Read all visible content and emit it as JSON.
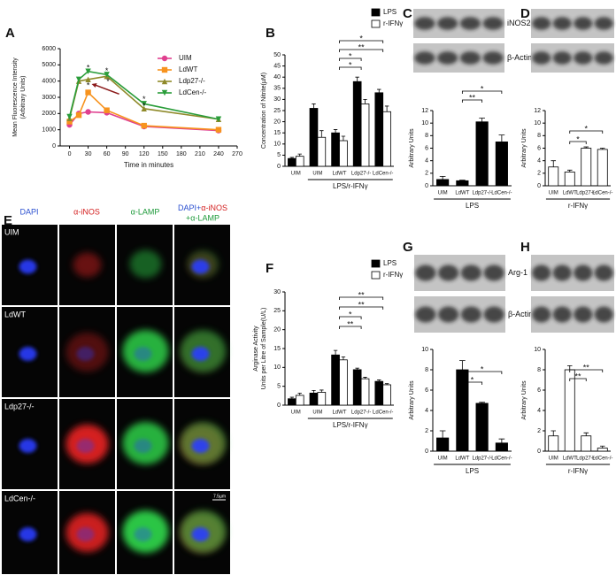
{
  "chart_data": [
    {
      "panel": "A",
      "type": "line",
      "x": [
        0,
        15,
        30,
        60,
        120,
        240
      ],
      "xlim": [
        -15,
        270
      ],
      "xticks": [
        0,
        30,
        60,
        90,
        120,
        150,
        180,
        210,
        240,
        270
      ],
      "ylim": [
        0,
        6000
      ],
      "yticks": [
        0,
        1000,
        2000,
        3000,
        4000,
        5000,
        6000
      ],
      "xlabel": "Time in minutes",
      "ylabel": [
        "Mean Fluorescence Intensity",
        "(Arbitrary Units)"
      ],
      "series": [
        {
          "name": "UIM",
          "color": "#e0408f",
          "marker": "circle",
          "values": [
            1300,
            2000,
            2100,
            2050,
            1200,
            950
          ]
        },
        {
          "name": "LdWT",
          "color": "#f7931e",
          "marker": "square",
          "values": [
            1500,
            1900,
            3300,
            2200,
            1250,
            1000
          ]
        },
        {
          "name": "Ldp27-/-",
          "color": "#8f8a2a",
          "marker": "triangle",
          "values": [
            1700,
            4000,
            4100,
            4300,
            2300,
            1650
          ]
        },
        {
          "name": "LdCen-/-",
          "color": "#2a9d3a",
          "marker": "triangle-down",
          "values": [
            1800,
            4100,
            4600,
            4400,
            2600,
            1650
          ]
        }
      ],
      "annotations": [
        "*",
        "*",
        "*",
        "*",
        "*",
        "*"
      ]
    },
    {
      "panel": "B",
      "type": "bar",
      "categories": [
        "UIM",
        "UIM",
        "LdWT",
        "Ldp27-/-",
        "LdCen-/-"
      ],
      "group_label": "LPS/r-IFNγ",
      "ylabel": "Concentration of Nitrite(µM)",
      "ylim": [
        0,
        50
      ],
      "yticks": [
        0,
        5,
        10,
        15,
        20,
        25,
        30,
        35,
        40,
        45,
        50
      ],
      "series": [
        {
          "name": "LPS",
          "color": "#000000",
          "values": [
            3.5,
            26,
            15,
            38,
            33
          ],
          "errors": [
            0.5,
            2,
            1.5,
            2,
            1.5
          ]
        },
        {
          "name": "r-IFNγ",
          "color": "#ffffff",
          "values": [
            4.5,
            13,
            11.5,
            28,
            24.5
          ],
          "errors": [
            1,
            3,
            2,
            2,
            2.5
          ]
        }
      ],
      "significance": [
        "*",
        "**",
        "*",
        "*"
      ]
    },
    {
      "panel": "C",
      "type": "bar",
      "blot_labels": [
        "iNOS2",
        "β-Actin"
      ],
      "categories": [
        "UIM",
        "LdWT",
        "Ldp27-/-",
        "LdCen-/-"
      ],
      "group_label": "LPS",
      "ylabel": "Arbitrary Units",
      "ylim": [
        0,
        12
      ],
      "yticks": [
        0,
        2,
        4,
        6,
        8,
        10,
        12
      ],
      "color": "#000000",
      "values": [
        1,
        0.8,
        10.2,
        7
      ],
      "errors": [
        0.5,
        0.1,
        0.6,
        1.1
      ],
      "significance": [
        "*",
        "**"
      ]
    },
    {
      "panel": "D",
      "type": "bar",
      "categories": [
        "UIM",
        "LdWT",
        "Ldp27-/-",
        "LdCen-/-"
      ],
      "group_label": "r-IFNγ",
      "ylabel": "Arbitrary Units",
      "ylim": [
        0,
        12
      ],
      "yticks": [
        0,
        2,
        4,
        6,
        8,
        10,
        12
      ],
      "color": "#ffffff",
      "values": [
        3,
        2.2,
        6,
        5.8
      ],
      "errors": [
        1,
        0.3,
        0.2,
        0.2
      ],
      "significance": [
        "*",
        "*"
      ]
    },
    {
      "panel": "F",
      "type": "bar",
      "categories": [
        "UIM",
        "UIM",
        "LdWT",
        "Ldp27-/-",
        "LdCen-/-"
      ],
      "group_label": "LPS/r-IFNγ",
      "ylabel": [
        "Arginase Activity",
        "Units per Litre of Sample(U/L)"
      ],
      "ylim": [
        0,
        30
      ],
      "yticks": [
        0,
        5,
        10,
        15,
        20,
        25,
        30
      ],
      "series": [
        {
          "name": "LPS",
          "color": "#000000",
          "values": [
            1.7,
            3.2,
            13.3,
            9.4,
            6.3
          ],
          "errors": [
            0.4,
            0.7,
            1.2,
            0.4,
            0.4
          ]
        },
        {
          "name": "r-IFNγ",
          "color": "#ffffff",
          "values": [
            2.6,
            3.4,
            12,
            7,
            5.4
          ],
          "errors": [
            0.6,
            0.6,
            0.8,
            0.4,
            0.3
          ]
        }
      ],
      "significance": [
        "**",
        "**",
        "*",
        "**"
      ]
    },
    {
      "panel": "G",
      "type": "bar",
      "blot_labels": [
        "Arg-1",
        "β-Actin"
      ],
      "categories": [
        "UIM",
        "LdWT",
        "Ldp27-/-",
        "LdCen-/-"
      ],
      "group_label": "LPS",
      "ylabel": "Arbitrary Units",
      "ylim": [
        0,
        10
      ],
      "yticks": [
        0,
        2,
        4,
        6,
        8,
        10
      ],
      "color": "#000000",
      "values": [
        1.3,
        8,
        4.7,
        0.8
      ],
      "errors": [
        0.7,
        0.9,
        0.1,
        0.4
      ],
      "significance": [
        "*",
        "*"
      ]
    },
    {
      "panel": "H",
      "type": "bar",
      "categories": [
        "UIM",
        "LdWT",
        "Ldp27-/-",
        "LdCen-/-"
      ],
      "group_label": "r-IFNγ",
      "ylabel": "Arbitrary Units",
      "ylim": [
        0,
        10
      ],
      "yticks": [
        0,
        2,
        4,
        6,
        8,
        10
      ],
      "color": "#ffffff",
      "values": [
        1.5,
        8,
        1.5,
        0.3
      ],
      "errors": [
        0.5,
        0.4,
        0.3,
        0.2
      ],
      "significance": [
        "**",
        "**"
      ]
    }
  ],
  "image_panel": {
    "panel": "E",
    "columns": [
      "DAPI",
      "α-iNOS",
      "α-LAMP",
      [
        "DAPI+",
        "α-iNOS",
        "+α-LAMP"
      ]
    ],
    "rows": [
      "UIM",
      "LdWT",
      "Ldp27-/-",
      "LdCen-/-"
    ],
    "scale_bar": "7.5µm"
  }
}
